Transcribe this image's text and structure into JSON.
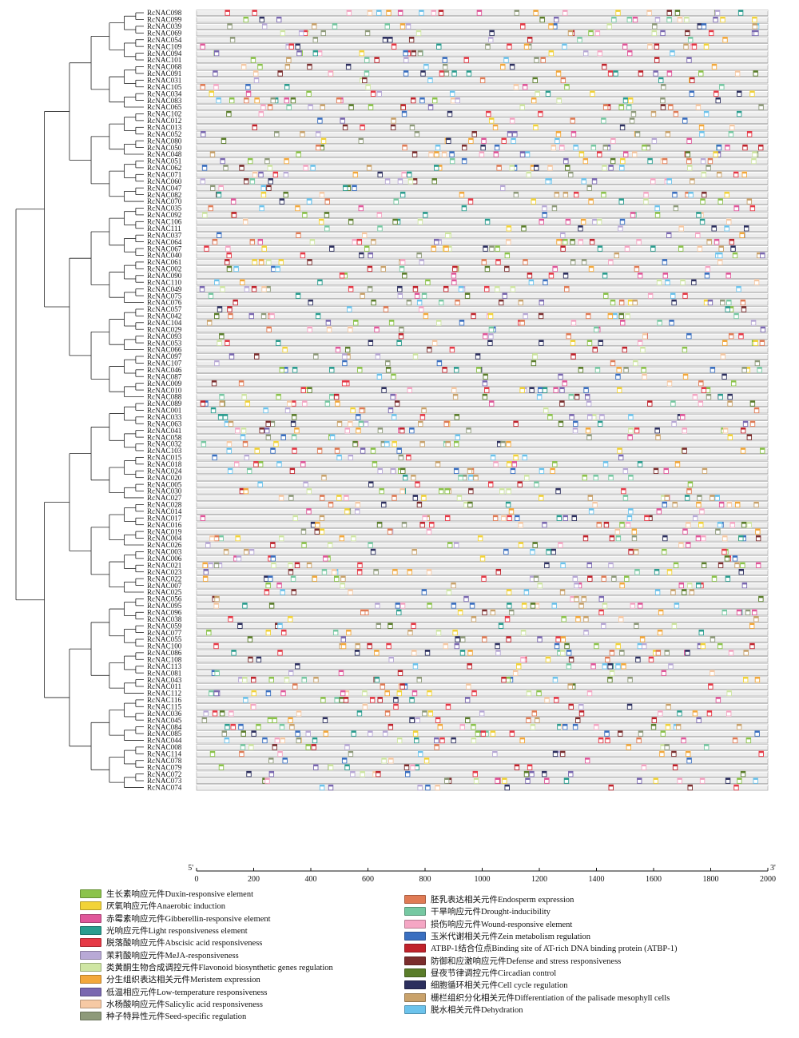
{
  "chart_data": {
    "type": "diagram",
    "description_visible": "gene promoter cis-acting element map with phylogenetic tree",
    "genes": [
      "RcNAC098",
      "RcNAC099",
      "RcNAC039",
      "RcNAC069",
      "RcNAC054",
      "RcNAC109",
      "RcNAC094",
      "RcNAC101",
      "RcNAC068",
      "RcNAC091",
      "RcNAC031",
      "RcNAC105",
      "RcNAC034",
      "RcNAC083",
      "RcNAC065",
      "RcNAC102",
      "RcNAC012",
      "RcNAC013",
      "RcNAC052",
      "RcNAC080",
      "RcNAC050",
      "RcNAC048",
      "RcNAC051",
      "RcNAC062",
      "RcNAC071",
      "RcNAC060",
      "RcNAC047",
      "RcNAC082",
      "RcNAC070",
      "RcNAC035",
      "RcNAC092",
      "RcNAC106",
      "RcNAC111",
      "RcNAC037",
      "RcNAC064",
      "RcNAC067",
      "RcNAC040",
      "RcNAC061",
      "RcNAC002",
      "RcNAC090",
      "RcNAC110",
      "RcNAC049",
      "RcNAC075",
      "RcNAC076",
      "RcNAC057",
      "RcNAC042",
      "RcNAC104",
      "RcNAC029",
      "RcNAC093",
      "RcNAC053",
      "RcNAC066",
      "RcNAC097",
      "RcNAC107",
      "RcNAC046",
      "RcNAC087",
      "RcNAC009",
      "RcNAC010",
      "RcNAC088",
      "RcNAC089",
      "RcNAC001",
      "RcNAC033",
      "RcNAC063",
      "RcNAC041",
      "RcNAC058",
      "RcNAC032",
      "RcNAC103",
      "RcNAC015",
      "RcNAC018",
      "RcNAC024",
      "RcNAC020",
      "RcNAC005",
      "RcNAC030",
      "RcNAC027",
      "RcNAC028",
      "RcNAC014",
      "RcNAC017",
      "RcNAC016",
      "RcNAC019",
      "RcNAC004",
      "RcNAC026",
      "RcNAC003",
      "RcNAC006",
      "RcNAC021",
      "RcNAC023",
      "RcNAC022",
      "RcNAC007",
      "RcNAC025",
      "RcNAC056",
      "RcNAC095",
      "RcNAC096",
      "RcNAC038",
      "RcNAC059",
      "RcNAC077",
      "RcNAC055",
      "RcNAC100",
      "RcNAC086",
      "RcNAC108",
      "RcNAC113",
      "RcNAC081",
      "RcNAC043",
      "RcNAC011",
      "RcNAC112",
      "RcNAC116",
      "RcNAC115",
      "RcNAC036",
      "RcNAC045",
      "RcNAC084",
      "RcNAC085",
      "RcNAC044",
      "RcNAC008",
      "RcNAC114",
      "RcNAC078",
      "RcNAC079",
      "RcNAC072",
      "RcNAC073",
      "RcNAC074"
    ],
    "x_axis": {
      "ticks": [
        "0",
        "200",
        "400",
        "600",
        "800",
        "1000",
        "1200",
        "1400",
        "1600",
        "1800",
        "2000"
      ],
      "range": [
        0,
        2000
      ],
      "left_end_label": "5'",
      "right_end_label": "3'"
    },
    "element_types": [
      {
        "label": "生长素响应元件Duxin-responsive element",
        "color": "#8bc34a"
      },
      {
        "label": "厌氧响应元件Anaerobic induction",
        "color": "#f2d338"
      },
      {
        "label": "赤霉素响应元件Gibberellin-responsive element",
        "color": "#e0579a"
      },
      {
        "label": "光响应元件Light responsiveness element",
        "color": "#2a9d8f"
      },
      {
        "label": "脱落酸响应元件Abscisic acid responsiveness",
        "color": "#e63946"
      },
      {
        "label": "茉莉酸响应元件MeJA-responsiveness",
        "color": "#b8a9d6"
      },
      {
        "label": "类黄酮生物合成调控元件Flavonoid biosynthetic genes regulation",
        "color": "#cfe6a3"
      },
      {
        "label": "分生组织表达相关元件Meristem expression",
        "color": "#f3a83b"
      },
      {
        "label": "低温相应元件Low-temperature responsiveness",
        "color": "#7a68b0"
      },
      {
        "label": "水杨酸响应元件Salicylic acid responsiveness",
        "color": "#f6c9a4"
      },
      {
        "label": "种子特异性元件Seed-specific regulation",
        "color": "#8e9a7a"
      },
      {
        "label": "胚乳表达相关元件Endosperm expression",
        "color": "#e07b55"
      },
      {
        "label": "干旱响应元件Drought-inducibility",
        "color": "#76c8a2"
      },
      {
        "label": "损伤响应元件Wound-responsive element",
        "color": "#f5a6c4"
      },
      {
        "label": "玉米代谢相关元件Zein metabolism regulation",
        "color": "#3a6fc0"
      },
      {
        "label": "ATBP-1结合位点Binding site of AT-rich DNA binding protein (ATBP-1)",
        "color": "#c0222b"
      },
      {
        "label": "防御和应激响应元件Defense and stress responsiveness",
        "color": "#7b2d2d"
      },
      {
        "label": "昼夜节律调控元件Circadian control",
        "color": "#5a7d2a"
      },
      {
        "label": "细胞循环相关元件Cell cycle regulation",
        "color": "#2c2f5e"
      },
      {
        "label": "栅栏组织分化相关元件Differentiation of the palisade mesophyll cells",
        "color": "#c9a26b"
      },
      {
        "label": "脱水相关元件Dehydration",
        "color": "#6cc3ec"
      }
    ],
    "legend_left_count": 11
  }
}
